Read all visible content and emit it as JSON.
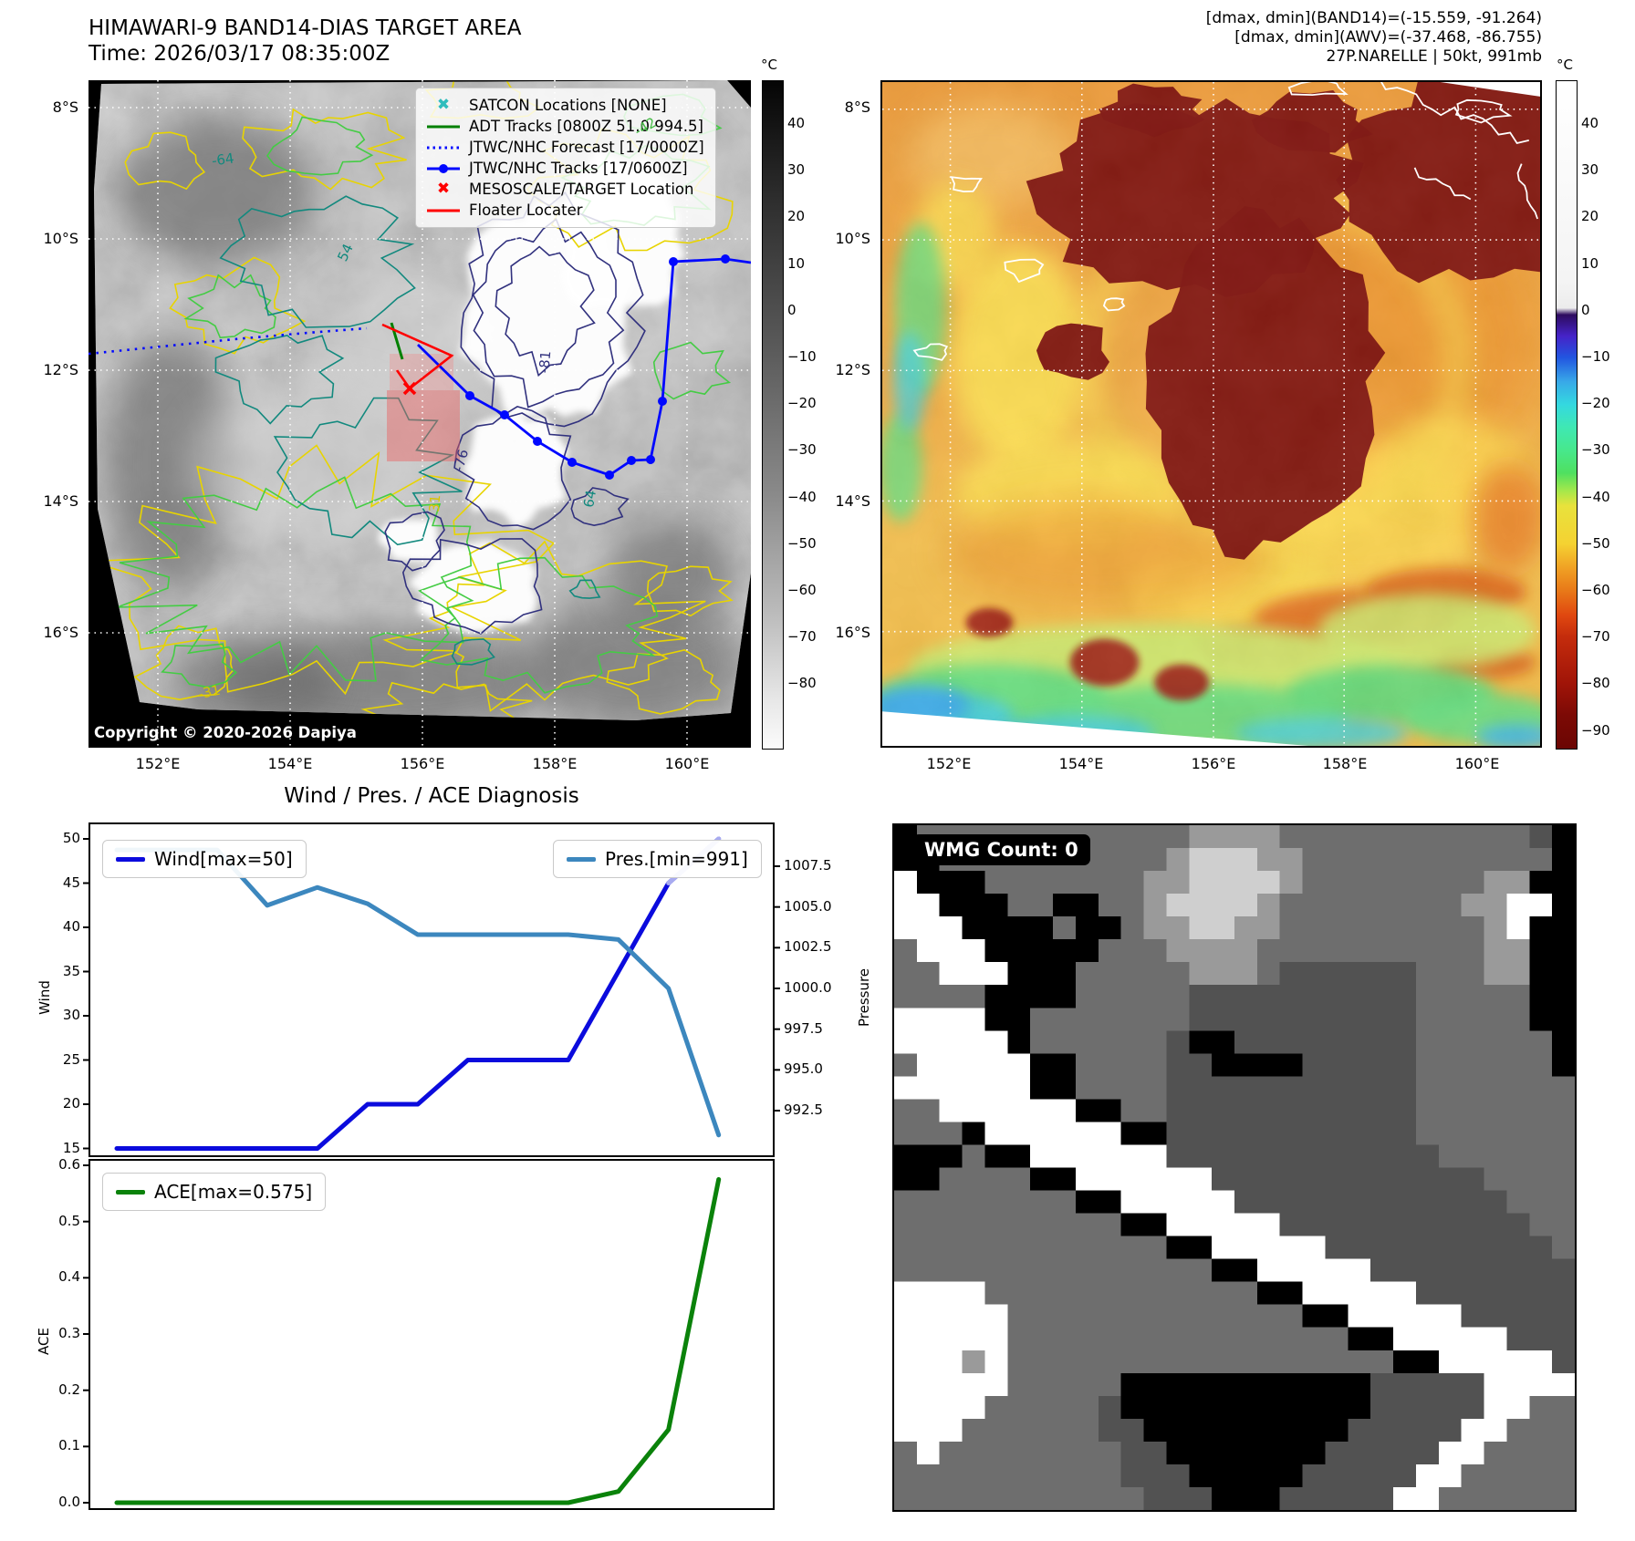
{
  "header": {
    "title_line1": "HIMAWARI-9 BAND14-DIAS TARGET AREA",
    "title_line2": "Time: 2026/03/17 08:35:00Z",
    "info_line1": "[dmax, dmin](BAND14)=(-15.559, -91.264)",
    "info_line2": "[dmax, dmin](AWV)=(-37.468, -86.755)",
    "info_line3": "27P.NARELLE | 50kt, 991mb"
  },
  "band14_map": {
    "copyright": "Copyright © 2020-2026 Dapiya",
    "lat_labels": [
      "8°S",
      "10°S",
      "12°S",
      "14°S",
      "16°S"
    ],
    "lon_labels": [
      "152°E",
      "154°E",
      "156°E",
      "158°E",
      "160°E"
    ],
    "legend": [
      {
        "label": "SATCON Locations [NONE]",
        "marker": "x",
        "color": "#2fbdbd"
      },
      {
        "label": "ADT Tracks [0800Z 51.0 994.5]",
        "marker": "line",
        "color": "#008000"
      },
      {
        "label": "JTWC/NHC Forecast [17/0000Z]",
        "marker": "dotted",
        "color": "#0008ff"
      },
      {
        "label": "JTWC/NHC Tracks [17/0600Z]",
        "marker": "linedot",
        "color": "#0008ff"
      },
      {
        "label": "MESOSCALE/TARGET Location",
        "marker": "x",
        "color": "#ff0000"
      },
      {
        "label": "Floater Locater",
        "marker": "line",
        "color": "#ff0000"
      }
    ],
    "colorbar": {
      "unit": "°C",
      "ticks": [
        40,
        30,
        20,
        10,
        0,
        -10,
        -20,
        -30,
        -40,
        -50,
        -60,
        -70,
        -80
      ]
    },
    "contour_labels": [
      {
        "text": "-64",
        "color": "#12897e"
      },
      {
        "text": "54",
        "color": "#12897e"
      },
      {
        "text": "-81",
        "color": "#31317e"
      },
      {
        "text": "-76",
        "color": "#31317e"
      },
      {
        "text": "64",
        "color": "#12897e"
      },
      {
        "text": "31",
        "color": "#d8c400"
      },
      {
        "text": "-31",
        "color": "#d8c400"
      },
      {
        "text": "-42",
        "color": "#44bb44"
      }
    ]
  },
  "awv_map": {
    "lat_labels": [
      "8°S",
      "10°S",
      "12°S",
      "14°S",
      "16°S"
    ],
    "lon_labels": [
      "152°E",
      "154°E",
      "156°E",
      "158°E",
      "160°E"
    ],
    "colorbar": {
      "unit": "°C",
      "ticks": [
        40,
        30,
        20,
        10,
        0,
        -10,
        -20,
        -30,
        -40,
        -50,
        -60,
        -70,
        -80,
        -90
      ]
    }
  },
  "chart_data": {
    "type": "line",
    "title": "Wind / Pres. / ACE Diagnosis",
    "x": [
      0,
      1,
      2,
      3,
      4,
      5,
      6,
      7,
      8,
      9,
      10,
      11,
      12
    ],
    "x_tick_labels_visible": false,
    "grid": false,
    "series": [
      {
        "name": "Wind[max=50]",
        "axis": "wind",
        "color": "#0b0bdd",
        "values": [
          15,
          15,
          15,
          15,
          15,
          20,
          20,
          25,
          25,
          25,
          35,
          45,
          50
        ]
      },
      {
        "name": "Pres.[min=991]",
        "axis": "pressure",
        "color": "#3c87be",
        "values": [
          1008.5,
          1008.5,
          1008.5,
          1005.1,
          1006.2,
          1005.2,
          1003.3,
          1003.3,
          1003.3,
          1003.3,
          1003.0,
          1000.0,
          991.0
        ]
      },
      {
        "name": "ACE[max=0.575]",
        "axis": "ace",
        "color": "#0a820a",
        "values": [
          0,
          0,
          0,
          0,
          0,
          0,
          0,
          0,
          0,
          0,
          0.02,
          0.13,
          0.575
        ]
      }
    ],
    "axes": {
      "wind": {
        "label": "Wind",
        "ticks": [
          50,
          45,
          40,
          35,
          30,
          25,
          20,
          15
        ],
        "range": [
          13.5,
          51.8
        ],
        "side": "left"
      },
      "pressure": {
        "label": "Pressure",
        "ticks": [
          1007.5,
          1005.0,
          1002.5,
          1000.0,
          997.5,
          995.0,
          992.5
        ],
        "range": [
          989.5,
          1010.2
        ],
        "side": "right"
      },
      "ace": {
        "label": "ACE",
        "ticks": [
          0.6,
          0.5,
          0.4,
          0.3,
          0.2,
          0.1,
          0.0
        ],
        "range": [
          -0.03,
          0.64
        ],
        "side": "left"
      }
    }
  },
  "wmg": {
    "badge": "WMG Count: 0",
    "palette": [
      "#000000",
      "#525252",
      "#6e6e6e",
      "#9a9a9a",
      "#cfcfcf",
      "#ffffff"
    ],
    "rows": [
      "022222222222233332222222222210",
      "002222222222344433222222222220",
      "500022222223344443222222223300",
      "550002200223444432222222233550",
      "555000020023344332222222223500",
      "255500000222333322222222223300",
      "225550002222233321111112223300",
      "222200002222211111111112222200",
      "555500222222211111111112222200",
      "555550222222100111111112222220",
      "255555002222110000111112222220",
      "555555002222111111111112222222",
      "225555550022111111111112222222",
      "222055555500111111111112222222",
      "000200555555111111111111222222",
      "002222005555551111111111112222",
      "222222220055555111111111111222",
      "222222222200555551111111111122",
      "222222222222005555511111111112",
      "222222222222220055555111111111",
      "555522222222222200555551111111",
      "555552222222222222005555511111",
      "555552222222222222220055555111",
      "555352222222222222222200555551",
      "555552222200000000000111115555",
      "555522222100000000000111115522",
      "555222222110000000001111155222",
      "252222222211000000011111552222",
      "222222222211100000111115522222",
      "222222222221110001111155222222"
    ]
  }
}
